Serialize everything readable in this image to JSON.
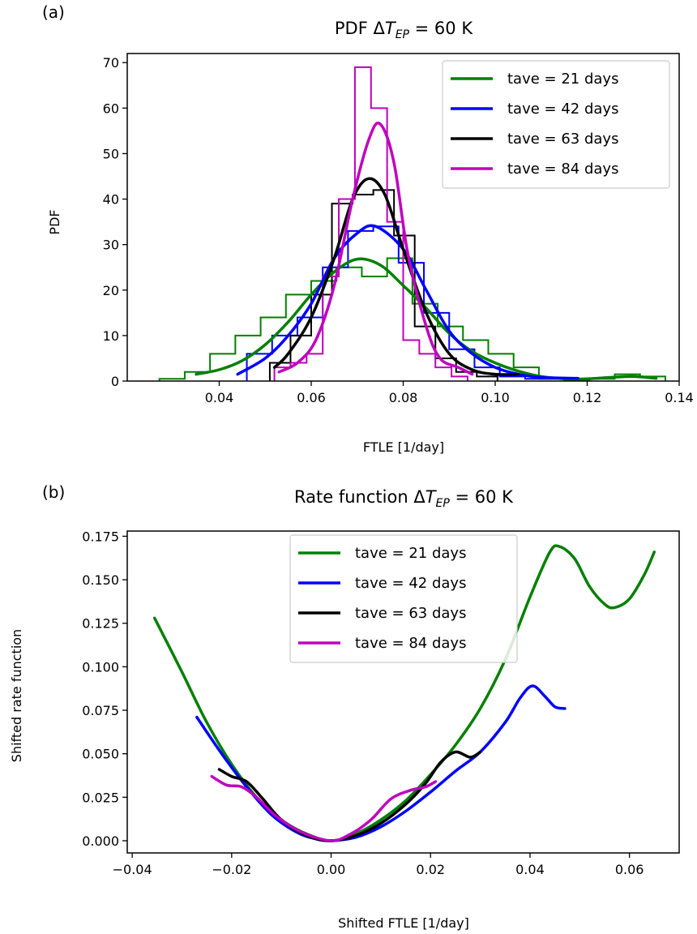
{
  "chart_data": [
    {
      "type": "line",
      "panel_label": "(a)",
      "title_prefix": "PDF ",
      "title_sub": "EP",
      "title_suffix": " = 60 K",
      "xlabel": "FTLE [1/day]",
      "ylabel": "PDF",
      "xlim": [
        0.02,
        0.14
      ],
      "ylim": [
        0,
        72
      ],
      "xticks": [
        0.04,
        0.06,
        0.08,
        0.1,
        0.12,
        0.14
      ],
      "xtick_labels": [
        "0.04",
        "0.06",
        "0.08",
        "0.10",
        "0.12",
        "0.14"
      ],
      "yticks": [
        0,
        10,
        20,
        30,
        40,
        50,
        60,
        70
      ],
      "ytick_labels": [
        "0",
        "10",
        "20",
        "30",
        "40",
        "50",
        "60",
        "70"
      ],
      "legend_position": "top-right",
      "series": [
        {
          "name": "tave = 21 days",
          "color": "#008000",
          "hist_edges": [
            0.027,
            0.0325,
            0.038,
            0.0435,
            0.049,
            0.0545,
            0.06,
            0.0655,
            0.071,
            0.0765,
            0.082,
            0.0875,
            0.093,
            0.0985,
            0.104,
            0.1095,
            0.115,
            0.1205,
            0.126,
            0.1315,
            0.137
          ],
          "hist_counts": [
            0.5,
            2,
            6,
            10,
            14,
            19,
            22,
            25,
            23,
            27,
            17,
            12,
            9,
            6,
            3,
            0.5,
            0,
            0.5,
            1.5,
            1
          ],
          "kde": [
            [
              0.035,
              1.5
            ],
            [
              0.04,
              2.5
            ],
            [
              0.045,
              4.5
            ],
            [
              0.05,
              8
            ],
            [
              0.055,
              13
            ],
            [
              0.06,
              19
            ],
            [
              0.065,
              24
            ],
            [
              0.07,
              26.8
            ],
            [
              0.075,
              25.5
            ],
            [
              0.08,
              21
            ],
            [
              0.085,
              16
            ],
            [
              0.09,
              10.5
            ],
            [
              0.095,
              6.5
            ],
            [
              0.1,
              4
            ],
            [
              0.105,
              2.2
            ],
            [
              0.11,
              1
            ],
            [
              0.115,
              0.5
            ],
            [
              0.12,
              0.5
            ],
            [
              0.125,
              0.8
            ],
            [
              0.13,
              1.0
            ],
            [
              0.135,
              0.6
            ]
          ]
        },
        {
          "name": "tave = 42 days",
          "color": "#0000ff",
          "hist_edges": [
            0.046,
            0.0515,
            0.057,
            0.0625,
            0.068,
            0.0735,
            0.079,
            0.0845,
            0.09,
            0.0955,
            0.101,
            0.1065,
            0.112,
            0.1175
          ],
          "hist_counts": [
            6,
            10,
            14,
            25,
            33,
            34,
            26,
            15,
            7,
            3,
            1,
            0.5,
            0.5
          ],
          "kde": [
            [
              0.044,
              1.5
            ],
            [
              0.05,
              5
            ],
            [
              0.055,
              10
            ],
            [
              0.06,
              17
            ],
            [
              0.065,
              27
            ],
            [
              0.07,
              32.5
            ],
            [
              0.074,
              34
            ],
            [
              0.08,
              29
            ],
            [
              0.085,
              20
            ],
            [
              0.09,
              11
            ],
            [
              0.095,
              6
            ],
            [
              0.1,
              3
            ],
            [
              0.105,
              1.5
            ],
            [
              0.11,
              0.8
            ],
            [
              0.118,
              0.6
            ]
          ]
        },
        {
          "name": "tave = 63 days",
          "color": "#000000",
          "hist_edges": [
            0.051,
            0.0555,
            0.06,
            0.0645,
            0.069,
            0.0735,
            0.078,
            0.0825,
            0.087,
            0.0915,
            0.096,
            0.1005
          ],
          "hist_counts": [
            4,
            10,
            19,
            39,
            41,
            42,
            32,
            12,
            5,
            2,
            1
          ],
          "kde": [
            [
              0.052,
              3
            ],
            [
              0.055,
              6
            ],
            [
              0.06,
              14
            ],
            [
              0.065,
              27
            ],
            [
              0.069,
              40
            ],
            [
              0.0725,
              44.5
            ],
            [
              0.076,
              41
            ],
            [
              0.08,
              29
            ],
            [
              0.085,
              15
            ],
            [
              0.09,
              6
            ],
            [
              0.095,
              2.5
            ],
            [
              0.1,
              1.5
            ],
            [
              0.105,
              1.5
            ]
          ]
        },
        {
          "name": "tave = 84 days",
          "color": "#bf00bf",
          "hist_edges": [
            0.052,
            0.0555,
            0.059,
            0.0625,
            0.066,
            0.0695,
            0.073,
            0.0765,
            0.08,
            0.0835,
            0.087,
            0.0905,
            0.094
          ],
          "hist_counts": [
            3,
            4,
            6,
            23,
            40,
            69,
            60,
            35,
            9,
            6,
            3,
            1
          ],
          "kde": [
            [
              0.053,
              2
            ],
            [
              0.057,
              4
            ],
            [
              0.061,
              9
            ],
            [
              0.065,
              21
            ],
            [
              0.069,
              40
            ],
            [
              0.0725,
              53
            ],
            [
              0.075,
              56.5
            ],
            [
              0.078,
              48
            ],
            [
              0.081,
              28
            ],
            [
              0.085,
              12
            ],
            [
              0.088,
              5
            ],
            [
              0.092,
              3
            ],
            [
              0.095,
              1.5
            ]
          ]
        }
      ]
    },
    {
      "type": "line",
      "panel_label": "(b)",
      "title_prefix": "Rate function ",
      "title_sub": "EP",
      "title_suffix": " = 60 K",
      "xlabel": "Shifted FTLE [1/day]",
      "ylabel": "Shifted rate function",
      "xlim": [
        -0.041,
        0.07
      ],
      "ylim": [
        -0.007,
        0.178
      ],
      "xticks": [
        -0.04,
        -0.02,
        0.0,
        0.02,
        0.04,
        0.06
      ],
      "xtick_labels": [
        "−0.04",
        "−0.02",
        "0.00",
        "0.02",
        "0.04",
        "0.06"
      ],
      "yticks": [
        0.0,
        0.025,
        0.05,
        0.075,
        0.1,
        0.125,
        0.15,
        0.175
      ],
      "ytick_labels": [
        "0.000",
        "0.025",
        "0.050",
        "0.075",
        "0.100",
        "0.125",
        "0.150",
        "0.175"
      ],
      "legend_position": "top-center",
      "series": [
        {
          "name": "tave = 21 days",
          "color": "#008000",
          "points": [
            [
              -0.0355,
              0.128
            ],
            [
              -0.03,
              0.097
            ],
            [
              -0.025,
              0.068
            ],
            [
              -0.02,
              0.044
            ],
            [
              -0.015,
              0.025
            ],
            [
              -0.01,
              0.012
            ],
            [
              -0.005,
              0.004
            ],
            [
              0.0,
              0.0
            ],
            [
              0.005,
              0.004
            ],
            [
              0.01,
              0.012
            ],
            [
              0.015,
              0.023
            ],
            [
              0.02,
              0.038
            ],
            [
              0.025,
              0.055
            ],
            [
              0.03,
              0.076
            ],
            [
              0.035,
              0.104
            ],
            [
              0.04,
              0.14
            ],
            [
              0.044,
              0.166
            ],
            [
              0.046,
              0.169
            ],
            [
              0.049,
              0.162
            ],
            [
              0.052,
              0.146
            ],
            [
              0.055,
              0.136
            ],
            [
              0.057,
              0.134
            ],
            [
              0.06,
              0.139
            ],
            [
              0.063,
              0.153
            ],
            [
              0.065,
              0.166
            ]
          ]
        },
        {
          "name": "tave = 42 days",
          "color": "#0000ff",
          "points": [
            [
              -0.027,
              0.071
            ],
            [
              -0.022,
              0.05
            ],
            [
              -0.017,
              0.031
            ],
            [
              -0.012,
              0.015
            ],
            [
              -0.007,
              0.005
            ],
            [
              -0.003,
              0.001
            ],
            [
              0.0,
              0.0
            ],
            [
              0.005,
              0.002
            ],
            [
              0.01,
              0.008
            ],
            [
              0.015,
              0.017
            ],
            [
              0.02,
              0.028
            ],
            [
              0.025,
              0.04
            ],
            [
              0.03,
              0.051
            ],
            [
              0.035,
              0.068
            ],
            [
              0.038,
              0.082
            ],
            [
              0.0405,
              0.089
            ],
            [
              0.043,
              0.083
            ],
            [
              0.045,
              0.077
            ],
            [
              0.047,
              0.076
            ]
          ]
        },
        {
          "name": "tave = 63 days",
          "color": "#000000",
          "points": [
            [
              -0.0225,
              0.041
            ],
            [
              -0.02,
              0.037
            ],
            [
              -0.017,
              0.034
            ],
            [
              -0.014,
              0.025
            ],
            [
              -0.01,
              0.012
            ],
            [
              -0.005,
              0.003
            ],
            [
              0.0,
              0.0
            ],
            [
              0.005,
              0.003
            ],
            [
              0.01,
              0.01
            ],
            [
              0.015,
              0.021
            ],
            [
              0.019,
              0.033
            ],
            [
              0.022,
              0.045
            ],
            [
              0.025,
              0.051
            ],
            [
              0.028,
              0.048
            ],
            [
              0.03,
              0.051
            ]
          ]
        },
        {
          "name": "tave = 84 days",
          "color": "#bf00bf",
          "points": [
            [
              -0.024,
              0.037
            ],
            [
              -0.021,
              0.032
            ],
            [
              -0.018,
              0.031
            ],
            [
              -0.015,
              0.025
            ],
            [
              -0.011,
              0.014
            ],
            [
              -0.006,
              0.005
            ],
            [
              0.0,
              0.0
            ],
            [
              0.004,
              0.004
            ],
            [
              0.008,
              0.012
            ],
            [
              0.012,
              0.024
            ],
            [
              0.016,
              0.029
            ],
            [
              0.019,
              0.031
            ],
            [
              0.021,
              0.034
            ]
          ]
        }
      ]
    }
  ]
}
